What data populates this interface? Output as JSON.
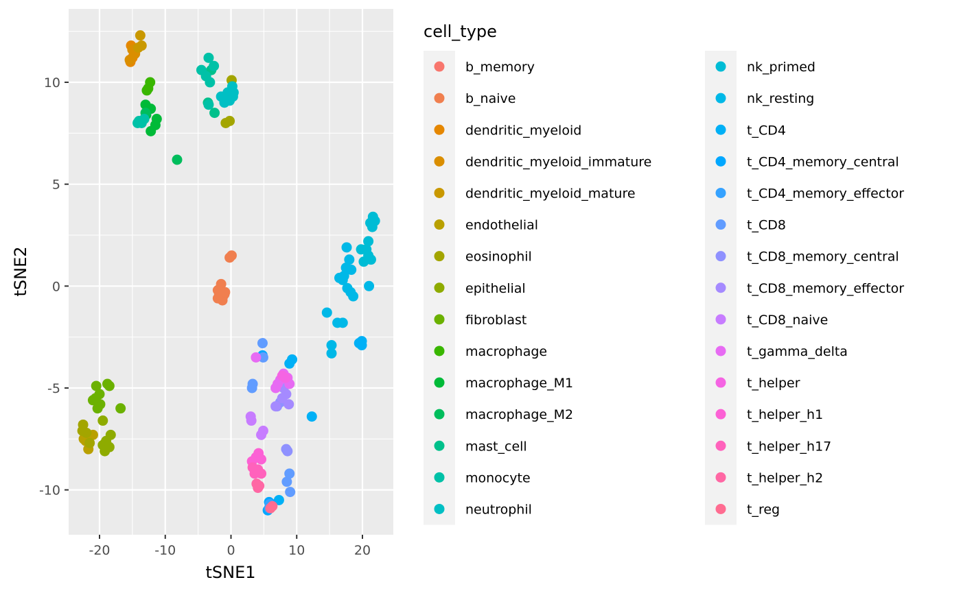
{
  "chart_data": {
    "type": "scatter",
    "xlabel": "tSNE1",
    "ylabel": "tSNE2",
    "xlim": [
      -24.7,
      24.7
    ],
    "ylim": [
      -12.2,
      13.6
    ],
    "x_ticks": [
      -20,
      -10,
      0,
      10,
      20
    ],
    "y_ticks": [
      -10,
      -5,
      0,
      5,
      10
    ],
    "x_tick_labels": [
      "-20",
      "-10",
      "0",
      "10",
      "20"
    ],
    "y_tick_labels": [
      "-10",
      "-5",
      "0",
      "5",
      "10"
    ],
    "grid": true,
    "legend_title": "cell_type",
    "legend_placement": "right",
    "series": [
      {
        "name": "b_memory",
        "color": "#F8766D",
        "points": [
          [
            -1.0,
            -0.3
          ],
          [
            -1.2,
            -0.5
          ]
        ]
      },
      {
        "name": "b_naive",
        "color": "#F07F4F",
        "points": [
          [
            -2.0,
            -0.2
          ],
          [
            -1.0,
            -0.4
          ],
          [
            -1.5,
            0.1
          ],
          [
            -1.3,
            -0.7
          ],
          [
            0.1,
            1.5
          ],
          [
            -0.2,
            1.4
          ],
          [
            -2.0,
            -0.6
          ],
          [
            -1.8,
            -0.4
          ],
          [
            -0.9,
            -0.3
          ]
        ]
      },
      {
        "name": "dendritic_myeloid",
        "color": "#E58700",
        "points": [
          [
            -15.2,
            11.8
          ],
          [
            -14.8,
            11.5
          ],
          [
            -15.0,
            11.2
          ],
          [
            -15.3,
            11.0
          ]
        ]
      },
      {
        "name": "dendritic_myeloid_immature",
        "color": "#DA8E00",
        "points": [
          [
            -15.0,
            11.6
          ],
          [
            -14.6,
            11.4
          ],
          [
            -15.4,
            11.1
          ]
        ]
      },
      {
        "name": "dendritic_myeloid_mature",
        "color": "#C99800",
        "points": [
          [
            -13.8,
            12.3
          ],
          [
            -13.6,
            11.8
          ],
          [
            -14.1,
            11.7
          ]
        ]
      },
      {
        "name": "endothelial",
        "color": "#B9A000",
        "points": [
          [
            -21.7,
            -8.0
          ],
          [
            -22.4,
            -7.5
          ],
          [
            -21.0,
            -7.3
          ],
          [
            -22.1,
            -7.6
          ]
        ]
      },
      {
        "name": "eosinophil",
        "color": "#A3A500",
        "points": [
          [
            -22.5,
            -6.8
          ],
          [
            -22.0,
            -7.2
          ],
          [
            -21.5,
            -7.7
          ],
          [
            0.1,
            10.1
          ],
          [
            -0.8,
            8.0
          ],
          [
            -0.2,
            8.1
          ],
          [
            -22.6,
            -7.1
          ]
        ]
      },
      {
        "name": "epithelial",
        "color": "#8EAB00",
        "points": [
          [
            -19.5,
            -7.8
          ],
          [
            -19.0,
            -7.6
          ],
          [
            -18.3,
            -7.3
          ],
          [
            -19.2,
            -8.1
          ],
          [
            -18.5,
            -7.9
          ],
          [
            -19.5,
            -6.6
          ]
        ]
      },
      {
        "name": "fibroblast",
        "color": "#6BB100",
        "points": [
          [
            -20.5,
            -4.9
          ],
          [
            -20.0,
            -5.3
          ],
          [
            -21.0,
            -5.6
          ],
          [
            -20.3,
            -6.0
          ],
          [
            -19.9,
            -5.8
          ],
          [
            -18.5,
            -4.9
          ],
          [
            -18.8,
            -4.8
          ],
          [
            -16.8,
            -6.0
          ],
          [
            -20.6,
            -5.5
          ]
        ]
      },
      {
        "name": "macrophage",
        "color": "#39B600",
        "points": [
          [
            -12.3,
            10.0
          ],
          [
            -12.6,
            9.7
          ],
          [
            -12.8,
            9.6
          ]
        ]
      },
      {
        "name": "macrophage_M1",
        "color": "#00BA38",
        "points": [
          [
            -13.0,
            8.9
          ],
          [
            -12.2,
            8.7
          ],
          [
            -12.9,
            8.4
          ],
          [
            -11.3,
            8.2
          ],
          [
            -11.5,
            7.9
          ],
          [
            -12.2,
            7.6
          ]
        ]
      },
      {
        "name": "macrophage_M2",
        "color": "#00BD5C",
        "points": [
          [
            -8.2,
            6.2
          ],
          [
            -13.0,
            8.5
          ]
        ]
      },
      {
        "name": "mast_cell",
        "color": "#00C08B",
        "points": [
          [
            -2.5,
            8.5
          ],
          [
            -3.5,
            9.0
          ],
          [
            -3.0,
            10.6
          ]
        ]
      },
      {
        "name": "monocyte",
        "color": "#00C1A7",
        "points": [
          [
            -4.5,
            10.6
          ],
          [
            -3.8,
            10.3
          ],
          [
            -3.4,
            11.2
          ],
          [
            -2.6,
            10.8
          ],
          [
            -3.2,
            10.0
          ],
          [
            -13.6,
            8.0
          ],
          [
            -13.2,
            8.2
          ],
          [
            -14.0,
            8.1
          ],
          [
            -3.4,
            8.9
          ],
          [
            -14.2,
            8.0
          ]
        ]
      },
      {
        "name": "neutrophil",
        "color": "#00BFC4",
        "points": [
          [
            -1.5,
            9.3
          ],
          [
            -1.0,
            9.0
          ],
          [
            -0.5,
            9.5
          ],
          [
            0.2,
            9.8
          ],
          [
            0.4,
            9.5
          ],
          [
            0.3,
            9.3
          ],
          [
            -0.2,
            9.1
          ]
        ]
      },
      {
        "name": "nk_primed",
        "color": "#00BCD5",
        "points": [
          [
            21.6,
            3.4
          ],
          [
            21.9,
            3.2
          ],
          [
            21.5,
            2.9
          ],
          [
            21.2,
            3.1
          ],
          [
            20.9,
            2.2
          ],
          [
            20.6,
            1.8
          ],
          [
            21.3,
            1.3
          ],
          [
            20.2,
            1.2
          ],
          [
            19.8,
            1.8
          ],
          [
            20.9,
            1.5
          ]
        ]
      },
      {
        "name": "nk_resting",
        "color": "#00B8E7",
        "points": [
          [
            17.6,
            1.9
          ],
          [
            18.0,
            1.3
          ],
          [
            17.5,
            0.9
          ],
          [
            18.3,
            0.8
          ],
          [
            17.2,
            0.5
          ],
          [
            16.5,
            0.4
          ],
          [
            17.0,
            0.3
          ],
          [
            17.7,
            -0.1
          ],
          [
            18.2,
            -0.3
          ],
          [
            18.6,
            -0.5
          ],
          [
            21.0,
            0.0
          ],
          [
            14.6,
            -1.3
          ],
          [
            16.2,
            -1.8
          ],
          [
            17.0,
            -1.8
          ],
          [
            15.3,
            -2.9
          ],
          [
            15.3,
            -3.3
          ]
        ]
      },
      {
        "name": "t_CD4",
        "color": "#00B0F6",
        "points": [
          [
            19.5,
            -2.8
          ],
          [
            19.9,
            -2.9
          ],
          [
            19.9,
            -2.7
          ],
          [
            12.3,
            -6.4
          ],
          [
            8.9,
            -3.8
          ],
          [
            9.3,
            -3.6
          ],
          [
            7.3,
            -10.5
          ]
        ]
      },
      {
        "name": "t_CD4_memory_central",
        "color": "#00A7FF",
        "points": [
          [
            5.8,
            -10.6
          ],
          [
            6.2,
            -10.7
          ],
          [
            5.6,
            -11.0
          ],
          [
            4.8,
            -3.4
          ]
        ]
      },
      {
        "name": "t_CD4_memory_effector",
        "color": "#35A2FF",
        "points": [
          [
            5.8,
            -10.9
          ],
          [
            5.9,
            -10.7
          ]
        ]
      },
      {
        "name": "t_CD8",
        "color": "#619CFF",
        "points": [
          [
            4.8,
            -2.8
          ],
          [
            3.3,
            -4.8
          ],
          [
            3.2,
            -5.0
          ],
          [
            4.9,
            -3.5
          ],
          [
            8.5,
            -9.6
          ],
          [
            8.9,
            -9.2
          ],
          [
            9.0,
            -10.1
          ]
        ]
      },
      {
        "name": "t_CD8_memory_central",
        "color": "#8F91FF",
        "points": [
          [
            8.4,
            -8.0
          ],
          [
            8.6,
            -8.1
          ],
          [
            7.0,
            -5.9
          ],
          [
            7.5,
            -5.7
          ]
        ]
      },
      {
        "name": "t_CD8_memory_effector",
        "color": "#A58AFF",
        "points": [
          [
            8.0,
            -5.0
          ],
          [
            8.4,
            -5.3
          ],
          [
            7.8,
            -5.5
          ],
          [
            6.8,
            -5.9
          ],
          [
            8.8,
            -5.8
          ]
        ]
      },
      {
        "name": "t_CD8_naive",
        "color": "#C77CFF",
        "points": [
          [
            3.0,
            -6.4
          ],
          [
            3.1,
            -6.6
          ],
          [
            4.9,
            -7.1
          ],
          [
            4.6,
            -7.3
          ]
        ]
      },
      {
        "name": "t_gamma_delta",
        "color": "#E76BF3",
        "points": [
          [
            8.0,
            -4.3
          ],
          [
            7.5,
            -4.6
          ],
          [
            8.6,
            -4.5
          ],
          [
            7.1,
            -4.8
          ],
          [
            6.8,
            -5.0
          ],
          [
            8.9,
            -4.8
          ],
          [
            3.8,
            -3.5
          ]
        ]
      },
      {
        "name": "t_helper",
        "color": "#F564E3",
        "points": [
          [
            7.8,
            -4.4
          ],
          [
            8.3,
            -4.5
          ]
        ]
      },
      {
        "name": "t_helper_h1",
        "color": "#FC61D5",
        "points": [
          [
            3.2,
            -8.6
          ],
          [
            3.8,
            -8.4
          ],
          [
            4.2,
            -8.2
          ],
          [
            4.6,
            -8.5
          ]
        ]
      },
      {
        "name": "t_helper_h17",
        "color": "#FF62BC",
        "points": [
          [
            3.3,
            -8.9
          ],
          [
            3.6,
            -9.2
          ],
          [
            4.1,
            -9.0
          ],
          [
            4.6,
            -9.2
          ]
        ]
      },
      {
        "name": "t_helper_h2",
        "color": "#FF67A4",
        "points": [
          [
            3.9,
            -9.7
          ],
          [
            4.1,
            -9.9
          ],
          [
            4.3,
            -9.8
          ]
        ]
      },
      {
        "name": "t_reg",
        "color": "#FF6C91",
        "points": [
          [
            6.0,
            -10.9
          ],
          [
            6.3,
            -10.8
          ]
        ]
      }
    ]
  }
}
